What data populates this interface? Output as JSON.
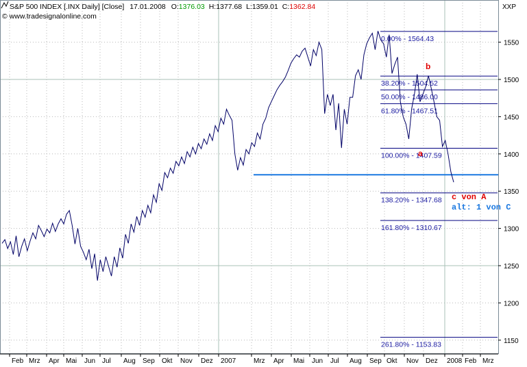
{
  "header": {
    "instrument": "S&P 500 INDEX [.INX  Daily] [Close]",
    "date": "17.01.2008",
    "open_label": "O:",
    "open_value": "1376.03",
    "high": "H:1377.68",
    "low": "L:1359.01",
    "close_label": "C:",
    "close_value": "1362.84",
    "copyright": "© www.tradesignalonline.com",
    "axis_symbol": "XXP"
  },
  "colors": {
    "price_line": "#000066",
    "fib_line": "#000080",
    "fib_text": "#1a1aa0",
    "support_line": "#1a78e0",
    "wave_label": "#e00000",
    "alt_label": "#1a78e0",
    "open_value": "#009900",
    "close_value": "#dd0000",
    "grid": "#b7b7b7",
    "frame": "#7a8a96"
  },
  "annotations": {
    "wave_b": "b",
    "wave_a": "a",
    "wave_c": "c von A",
    "wave_alt": "alt: 1 von C"
  },
  "chart_data": {
    "type": "line",
    "title": "S&P 500 INDEX [.INX  Daily] [Close]",
    "xlabel": "",
    "ylabel": "",
    "ylim": [
      1100,
      1575
    ],
    "yticks": [
      1150,
      1200,
      1250,
      1300,
      1350,
      1400,
      1450,
      1500,
      1550
    ],
    "grid": true,
    "x_tick_labels": [
      "Feb",
      "Mrz",
      "Apr",
      "Mai",
      "Jun",
      "Jul",
      "Aug",
      "Sep",
      "Okt",
      "Nov",
      "Dez",
      "2007",
      "Mrz",
      "Apr",
      "Mai",
      "Jun",
      "Jul",
      "Aug",
      "Sep",
      "Okt",
      "Nov",
      "Dez",
      "2008",
      "Feb",
      "Mrz"
    ],
    "series": [
      {
        "values": [
          1280,
          1285,
          1273,
          1282,
          1265,
          1290,
          1262,
          1276,
          1286,
          1270,
          1283,
          1294,
          1286,
          1304,
          1297,
          1289,
          1299,
          1294,
          1307,
          1296,
          1306,
          1313,
          1306,
          1319,
          1324,
          1304,
          1279,
          1300,
          1276,
          1268,
          1258,
          1272,
          1246,
          1266,
          1230,
          1258,
          1242,
          1262,
          1249,
          1236,
          1262,
          1248,
          1274,
          1260,
          1292,
          1280,
          1306,
          1295,
          1316,
          1304,
          1324,
          1315,
          1331,
          1321,
          1345,
          1335,
          1360,
          1351,
          1375,
          1368,
          1381,
          1374,
          1390,
          1384,
          1396,
          1387,
          1403,
          1396,
          1409,
          1400,
          1414,
          1407,
          1420,
          1413,
          1427,
          1418,
          1438,
          1430,
          1448,
          1440,
          1460,
          1452,
          1445,
          1400,
          1378,
          1395,
          1385,
          1406,
          1400,
          1415,
          1410,
          1428,
          1420,
          1440,
          1448,
          1462,
          1470,
          1478,
          1486,
          1492,
          1497,
          1503,
          1512,
          1522,
          1528,
          1533,
          1530,
          1538,
          1542,
          1530,
          1518,
          1540,
          1532,
          1550,
          1540,
          1454,
          1480,
          1465,
          1480,
          1432,
          1468,
          1408,
          1460,
          1440,
          1476,
          1476,
          1505,
          1513,
          1500,
          1533,
          1548,
          1556,
          1562,
          1540,
          1565,
          1553,
          1548,
          1530,
          1560,
          1508,
          1520,
          1530,
          1470,
          1450,
          1440,
          1420,
          1460,
          1480,
          1507,
          1470,
          1480,
          1490,
          1505,
          1488,
          1470,
          1450,
          1445,
          1410,
          1418,
          1400,
          1376,
          1362
        ],
        "dates_span": [
          "2006-01-25",
          "2008-01-17"
        ]
      }
    ],
    "fibonacci_levels": [
      {
        "label": "0.00% - 1564.43",
        "ratio": "0.00%",
        "value": 1564.43
      },
      {
        "label": "38.20% - 1504.52",
        "ratio": "38.20%",
        "value": 1504.52
      },
      {
        "label": "50.00% - 1486.00",
        "ratio": "50.00%",
        "value": 1486.0
      },
      {
        "label": "61.80% - 1467.51",
        "ratio": "61.80%",
        "value": 1467.51
      },
      {
        "label": "100.00% - 1407.59",
        "ratio": "100.00%",
        "value": 1407.59
      },
      {
        "label": "138.20% - 1347.68",
        "ratio": "138.20%",
        "value": 1347.68
      },
      {
        "label": "161.80% - 1310.67",
        "ratio": "161.80%",
        "value": 1310.67
      },
      {
        "label": "261.80% - 1153.83",
        "ratio": "261.80%",
        "value": 1153.83
      }
    ],
    "support_line_value": 1372
  }
}
